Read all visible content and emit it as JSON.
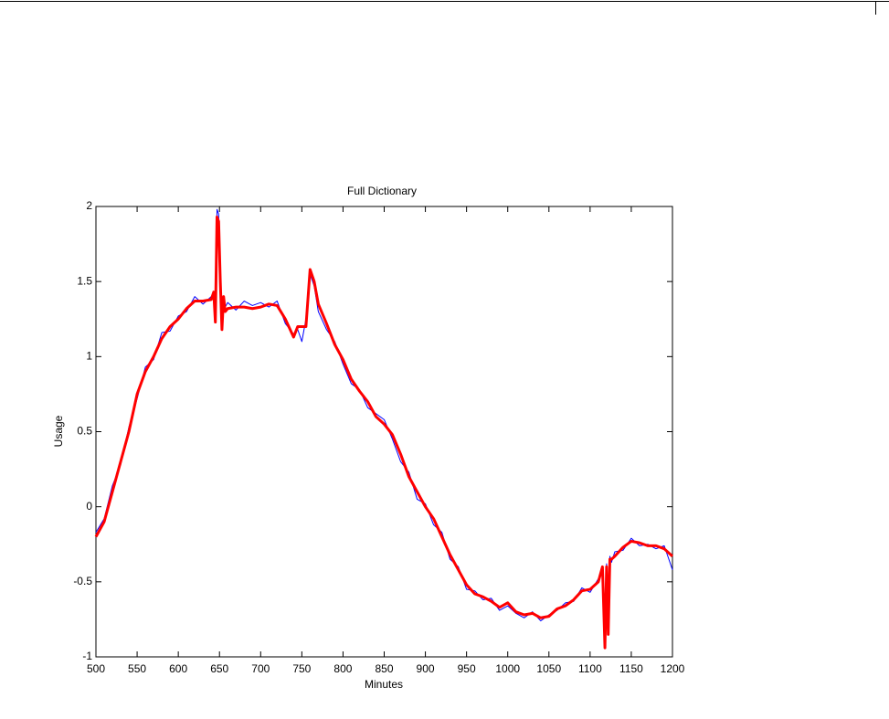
{
  "chart_data": {
    "type": "line",
    "title": "Full Dictionary",
    "xlabel": "Minutes",
    "ylabel": "Usage",
    "x": [
      500,
      510,
      520,
      530,
      540,
      550,
      560,
      570,
      580,
      590,
      600,
      610,
      620,
      630,
      640,
      643,
      645,
      647,
      649,
      651,
      653,
      655,
      657,
      660,
      670,
      680,
      690,
      700,
      710,
      720,
      730,
      740,
      745,
      750,
      755,
      760,
      765,
      770,
      780,
      790,
      800,
      810,
      820,
      830,
      840,
      850,
      860,
      870,
      880,
      890,
      900,
      910,
      920,
      930,
      940,
      950,
      960,
      970,
      980,
      990,
      1000,
      1010,
      1020,
      1030,
      1040,
      1050,
      1060,
      1070,
      1080,
      1090,
      1100,
      1110,
      1115,
      1118,
      1120,
      1122,
      1124,
      1126,
      1130,
      1140,
      1150,
      1160,
      1170,
      1180,
      1190,
      1200
    ],
    "series": [
      {
        "color": "#0000ff",
        "width": 1,
        "values": [
          -0.17,
          -0.08,
          0.14,
          0.28,
          0.53,
          0.72,
          0.93,
          0.98,
          1.16,
          1.17,
          1.27,
          1.3,
          1.4,
          1.35,
          1.4,
          1.42,
          1.28,
          1.98,
          1.95,
          1.45,
          1.22,
          1.37,
          1.33,
          1.36,
          1.31,
          1.37,
          1.34,
          1.36,
          1.33,
          1.37,
          1.22,
          1.15,
          1.18,
          1.1,
          1.25,
          1.55,
          1.47,
          1.3,
          1.18,
          1.1,
          0.95,
          0.82,
          0.78,
          0.66,
          0.62,
          0.58,
          0.45,
          0.3,
          0.23,
          0.05,
          0.02,
          -0.12,
          -0.17,
          -0.35,
          -0.4,
          -0.55,
          -0.56,
          -0.62,
          -0.61,
          -0.69,
          -0.66,
          -0.71,
          -0.74,
          -0.7,
          -0.76,
          -0.72,
          -0.69,
          -0.64,
          -0.63,
          -0.54,
          -0.57,
          -0.48,
          -0.42,
          -0.9,
          -0.38,
          -0.82,
          -0.33,
          -0.37,
          -0.3,
          -0.29,
          -0.21,
          -0.26,
          -0.25,
          -0.28,
          -0.26,
          -0.42
        ]
      },
      {
        "color": "#ff0000",
        "width": 3,
        "values": [
          -0.2,
          -0.1,
          0.1,
          0.3,
          0.5,
          0.75,
          0.9,
          1.0,
          1.12,
          1.2,
          1.25,
          1.32,
          1.37,
          1.37,
          1.38,
          1.43,
          1.23,
          1.93,
          1.9,
          1.5,
          1.18,
          1.4,
          1.3,
          1.32,
          1.33,
          1.33,
          1.32,
          1.33,
          1.35,
          1.34,
          1.25,
          1.13,
          1.2,
          1.2,
          1.2,
          1.58,
          1.5,
          1.35,
          1.22,
          1.08,
          0.98,
          0.85,
          0.77,
          0.7,
          0.6,
          0.55,
          0.48,
          0.35,
          0.2,
          0.1,
          0.0,
          -0.08,
          -0.2,
          -0.32,
          -0.42,
          -0.52,
          -0.58,
          -0.6,
          -0.63,
          -0.67,
          -0.64,
          -0.7,
          -0.72,
          -0.71,
          -0.74,
          -0.73,
          -0.68,
          -0.66,
          -0.62,
          -0.56,
          -0.55,
          -0.5,
          -0.4,
          -0.94,
          -0.4,
          -0.85,
          -0.35,
          -0.35,
          -0.33,
          -0.27,
          -0.23,
          -0.24,
          -0.26,
          -0.26,
          -0.28,
          -0.33
        ]
      }
    ],
    "xlim": [
      500,
      1200
    ],
    "xticks": [
      500,
      550,
      600,
      650,
      700,
      750,
      800,
      850,
      900,
      950,
      1000,
      1050,
      1100,
      1150,
      1200
    ],
    "ylim": [
      -1,
      2
    ],
    "yticks": [
      -1,
      -0.5,
      0,
      0.5,
      1,
      1.5,
      2
    ]
  }
}
